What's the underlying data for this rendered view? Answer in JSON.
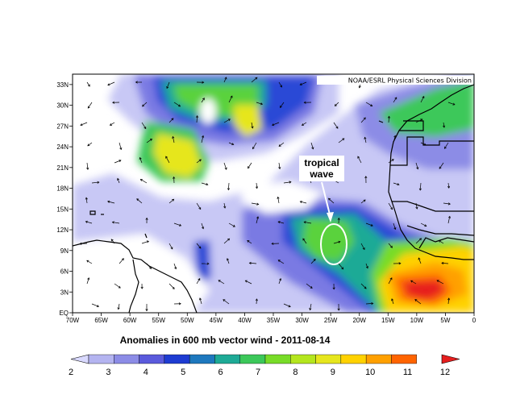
{
  "credit": "NOAA/ESRL Physical Sciences Division",
  "caption": "Anomalies in  600 mb vector wind - 2011-08-14",
  "annotation": {
    "line1": "tropical",
    "line2": "wave"
  },
  "map": {
    "lon_labels": [
      "70W",
      "65W",
      "60W",
      "55W",
      "50W",
      "45W",
      "40W",
      "35W",
      "30W",
      "25W",
      "20W",
      "15W",
      "10W",
      "5W",
      "0"
    ],
    "lat_labels": [
      "EQ",
      "3N",
      "6N",
      "9N",
      "12N",
      "15N",
      "18N",
      "21N",
      "24N",
      "27N",
      "30N",
      "33N"
    ],
    "lon_range": [
      -70,
      0
    ],
    "lat_range": [
      0,
      34.5
    ]
  },
  "colorbar": {
    "labels": [
      "2",
      "3",
      "4",
      "5",
      "6",
      "7",
      "8",
      "9",
      "10",
      "11",
      "12"
    ],
    "colors": [
      "#d9d9ff",
      "#b4b4f0",
      "#8c8ce6",
      "#5a5adc",
      "#1e3cd2",
      "#1e78be",
      "#1eaa96",
      "#3cc85a",
      "#78dc28",
      "#b4e61e",
      "#e6e61e",
      "#ffd200",
      "#ffa000",
      "#ff6400",
      "#e61e1e"
    ]
  }
}
